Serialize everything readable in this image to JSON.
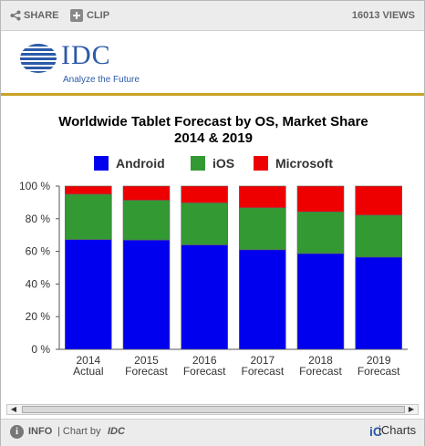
{
  "toolbar": {
    "share_label": "SHARE",
    "clip_label": "CLIP",
    "views_label": "16013 VIEWS"
  },
  "logo": {
    "wordmark": "IDC",
    "tagline": "Analyze the Future",
    "color": "#2b5aa8"
  },
  "chart_data": {
    "type": "bar",
    "stacked": true,
    "title": "Worldwide Tablet Forecast by OS, Market Share",
    "subtitle": "2014 & 2019",
    "categories": [
      [
        "2014",
        "Actual"
      ],
      [
        "2015",
        "Forecast"
      ],
      [
        "2016",
        "Forecast"
      ],
      [
        "2017",
        "Forecast"
      ],
      [
        "2018",
        "Forecast"
      ],
      [
        "2019",
        "Forecast"
      ]
    ],
    "series": [
      {
        "name": "Android",
        "color": "#0000ee",
        "values": [
          67.3,
          67.0,
          64.0,
          61.0,
          58.7,
          56.5
        ]
      },
      {
        "name": "iOS",
        "color": "#339933",
        "values": [
          27.7,
          24.3,
          25.7,
          25.7,
          25.5,
          25.7
        ]
      },
      {
        "name": "Microsoft",
        "color": "#ee0000",
        "values": [
          5.0,
          8.7,
          10.3,
          13.3,
          15.8,
          17.8
        ]
      }
    ],
    "ylim": [
      0,
      100
    ],
    "yticks": [
      0,
      20,
      40,
      60,
      80,
      100
    ],
    "ytick_labels": [
      "0 %",
      "20 %",
      "40 %",
      "60 %",
      "80 %",
      "100 %"
    ],
    "grid": false,
    "legend_position": "top"
  },
  "footer": {
    "info_label": "INFO",
    "chart_by_label": "| Chart by",
    "chart_by_brand": "IDC",
    "icharts_1": "iC",
    "icharts_2": "iCharts"
  }
}
